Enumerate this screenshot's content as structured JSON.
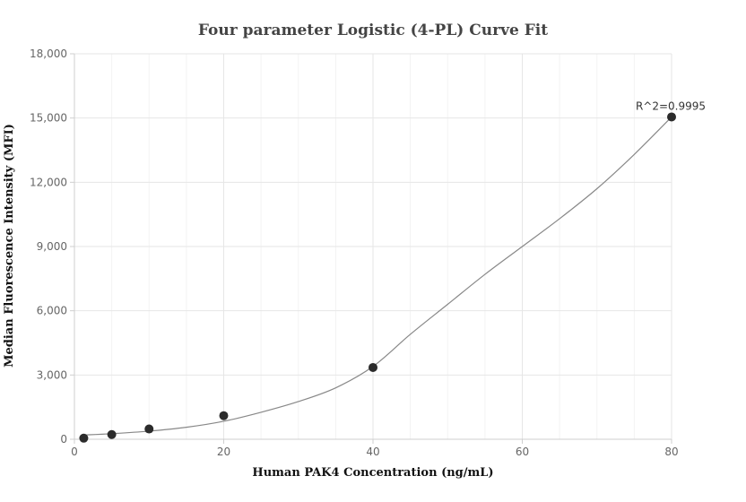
{
  "chart_data": {
    "type": "scatter",
    "title": "Four parameter Logistic (4-PL) Curve Fit",
    "xlabel": "Human PAK4 Concentration (ng/mL)",
    "ylabel": "Median Fluorescence Intensity (MFI)",
    "xlim": [
      0,
      80
    ],
    "ylim": [
      0,
      18000
    ],
    "x_ticks": [
      0,
      20,
      40,
      60,
      80
    ],
    "y_ticks": [
      0,
      3000,
      6000,
      9000,
      12000,
      15000,
      18000
    ],
    "x_tick_labels": [
      "0",
      "20",
      "40",
      "60",
      "80"
    ],
    "y_tick_labels": [
      "0",
      "3,000",
      "6,000",
      "9,000",
      "12,000",
      "15,000",
      "18,000"
    ],
    "points": [
      {
        "x": 1.25,
        "y": 50
      },
      {
        "x": 5,
        "y": 220
      },
      {
        "x": 10,
        "y": 480
      },
      {
        "x": 20,
        "y": 1100
      },
      {
        "x": 40,
        "y": 3350
      },
      {
        "x": 80,
        "y": 15050
      }
    ],
    "fit_curve": [
      {
        "x": 1.25,
        "y": 200
      },
      {
        "x": 5,
        "y": 260
      },
      {
        "x": 10,
        "y": 380
      },
      {
        "x": 15,
        "y": 560
      },
      {
        "x": 20,
        "y": 840
      },
      {
        "x": 25,
        "y": 1260
      },
      {
        "x": 30,
        "y": 1760
      },
      {
        "x": 35,
        "y": 2400
      },
      {
        "x": 40,
        "y": 3400
      },
      {
        "x": 45,
        "y": 4900
      },
      {
        "x": 50,
        "y": 6300
      },
      {
        "x": 55,
        "y": 7700
      },
      {
        "x": 60,
        "y": 9000
      },
      {
        "x": 65,
        "y": 10300
      },
      {
        "x": 70,
        "y": 11700
      },
      {
        "x": 75,
        "y": 13300
      },
      {
        "x": 80,
        "y": 15050
      }
    ],
    "annotation": {
      "text": "R^2=0.9995",
      "x": 80,
      "y": 15050
    },
    "grid": true,
    "colors": {
      "points": "#2b2b2b",
      "curve": "#888888",
      "grid": "#e6e6e6"
    }
  }
}
